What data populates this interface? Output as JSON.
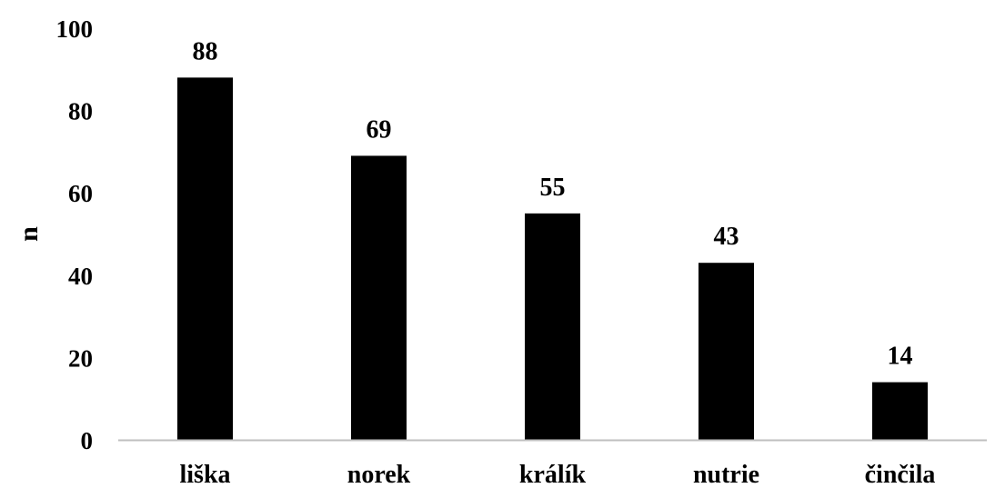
{
  "chart_data": {
    "type": "bar",
    "title": "",
    "xlabel": "",
    "ylabel": "n",
    "categories": [
      "liška",
      "norek",
      "králík",
      "nutrie",
      "činčila"
    ],
    "values": [
      88,
      69,
      55,
      43,
      14
    ],
    "data_labels": [
      "88",
      "69",
      "55",
      "43",
      "14"
    ],
    "ylim": [
      0,
      100
    ],
    "yticks": [
      0,
      20,
      40,
      60,
      80,
      100
    ],
    "ytick_labels": [
      "0",
      "20",
      "40",
      "60",
      "80",
      "100"
    ],
    "grid": false,
    "legend": "none",
    "bar_color": "#000000",
    "axis_color": "#bfbfbf"
  }
}
